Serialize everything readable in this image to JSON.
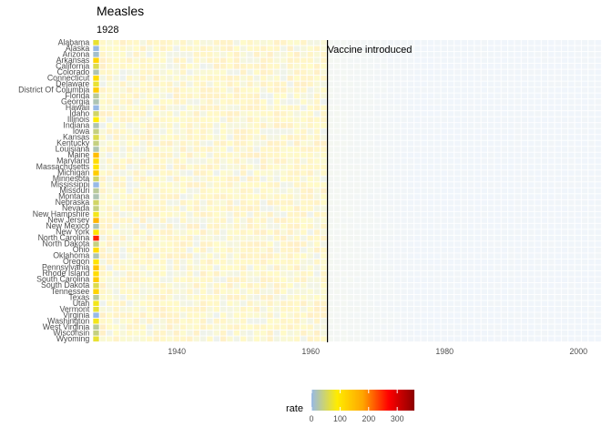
{
  "chart_data": {
    "type": "heatmap",
    "title": "Measles",
    "subtitle": "1928",
    "xlabel": "",
    "ylabel": "",
    "xlim": [
      1928,
      2000
    ],
    "x_ticks": [
      "1940",
      "1960",
      "1980",
      "2000"
    ],
    "x_tick_values": [
      1940,
      1960,
      1980,
      2000
    ],
    "states": [
      "Alabama",
      "Alaska",
      "Arizona",
      "Arkansas",
      "California",
      "Colorado",
      "Connecticut",
      "Delaware",
      "District Of Columbia",
      "Florida",
      "Georgia",
      "Hawaii",
      "Idaho",
      "Illinois",
      "Indiana",
      "Iowa",
      "Kansas",
      "Kentucky",
      "Louisiana",
      "Maine",
      "Maryland",
      "Massachusetts",
      "Michigan",
      "Minnesota",
      "Mississippi",
      "Missouri",
      "Montana",
      "Nebraska",
      "Nevada",
      "New Hampshire",
      "New Jersey",
      "New Mexico",
      "New York",
      "North Carolina",
      "North Dakota",
      "Ohio",
      "Oklahoma",
      "Oregon",
      "Pennsylvania",
      "Rhode Island",
      "South Carolina",
      "South Dakota",
      "Tennessee",
      "Texas",
      "Utah",
      "Vermont",
      "Virginia",
      "Washington",
      "West Virginia",
      "Wisconsin",
      "Wyoming"
    ],
    "highlighted_year": 1928,
    "rates_1928": [
      70,
      0,
      10,
      120,
      60,
      20,
      110,
      70,
      130,
      30,
      20,
      0,
      50,
      90,
      20,
      40,
      60,
      40,
      20,
      150,
      110,
      100,
      130,
      50,
      0,
      30,
      20,
      50,
      40,
      80,
      160,
      20,
      100,
      250,
      40,
      110,
      20,
      100,
      140,
      110,
      130,
      60,
      120,
      30,
      80,
      70,
      0,
      80,
      30,
      40,
      70
    ],
    "annotation": {
      "year": 1963,
      "label": "Vaccine introduced"
    },
    "legend": {
      "title": "rate",
      "ticks": [
        "0",
        "100",
        "200",
        "300"
      ],
      "tick_values": [
        0,
        100,
        200,
        300
      ],
      "range": [
        0,
        360
      ],
      "colors": [
        "#97b9e6",
        "#ffec00",
        "#ffa500",
        "#ff0000",
        "#8b0000"
      ]
    },
    "grid": false
  }
}
